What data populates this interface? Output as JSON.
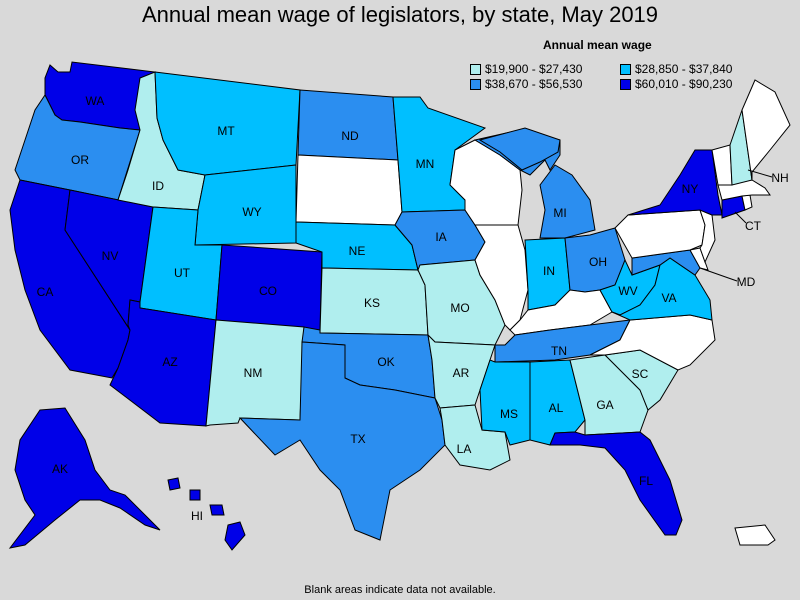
{
  "title": "Annual mean wage of legislators, by state, May 2019",
  "legend": {
    "title": "Annual mean wage",
    "items": [
      {
        "label": "$19,900 - $27,430",
        "color": "#b0eeee"
      },
      {
        "label": "$28,850 - $37,840",
        "color": "#00bfff"
      },
      {
        "label": "$38,670 - $56,530",
        "color": "#2b8ef0"
      },
      {
        "label": "$60,010 - $90,230",
        "color": "#0000e8"
      }
    ]
  },
  "footnote": "Blank areas indicate data not available.",
  "states": {
    "WA": {
      "label": "WA",
      "color": "#0000e8"
    },
    "OR": {
      "label": "OR",
      "color": "#2b8ef0"
    },
    "CA": {
      "label": "CA",
      "color": "#0000e8"
    },
    "NV": {
      "label": "NV",
      "color": "#0000e8"
    },
    "ID": {
      "label": "ID",
      "color": "#b0eeee"
    },
    "MT": {
      "label": "MT",
      "color": "#00bfff"
    },
    "WY": {
      "label": "WY",
      "color": "#00bfff"
    },
    "UT": {
      "label": "UT",
      "color": "#00bfff"
    },
    "AZ": {
      "label": "AZ",
      "color": "#0000e8"
    },
    "CO": {
      "label": "CO",
      "color": "#0000e8"
    },
    "NM": {
      "label": "NM",
      "color": "#b0eeee"
    },
    "ND": {
      "label": "ND",
      "color": "#2b8ef0"
    },
    "SD": {
      "label": "",
      "color": "#ffffff"
    },
    "NE": {
      "label": "NE",
      "color": "#00bfff"
    },
    "KS": {
      "label": "KS",
      "color": "#b0eeee"
    },
    "OK": {
      "label": "OK",
      "color": "#2b8ef0"
    },
    "TX": {
      "label": "TX",
      "color": "#2b8ef0"
    },
    "MN": {
      "label": "MN",
      "color": "#00bfff"
    },
    "IA": {
      "label": "IA",
      "color": "#2b8ef0"
    },
    "MO": {
      "label": "MO",
      "color": "#b0eeee"
    },
    "AR": {
      "label": "AR",
      "color": "#b0eeee"
    },
    "LA": {
      "label": "LA",
      "color": "#b0eeee"
    },
    "WI": {
      "label": "",
      "color": "#ffffff"
    },
    "IL": {
      "label": "",
      "color": "#ffffff"
    },
    "MI": {
      "label": "MI",
      "color": "#2b8ef0"
    },
    "IN": {
      "label": "IN",
      "color": "#00bfff"
    },
    "OH": {
      "label": "OH",
      "color": "#2b8ef0"
    },
    "KY": {
      "label": "",
      "color": "#ffffff"
    },
    "TN": {
      "label": "TN",
      "color": "#2b8ef0"
    },
    "MS": {
      "label": "MS",
      "color": "#00bfff"
    },
    "AL": {
      "label": "AL",
      "color": "#00bfff"
    },
    "GA": {
      "label": "GA",
      "color": "#b0eeee"
    },
    "FL": {
      "label": "FL",
      "color": "#0000e8"
    },
    "SC": {
      "label": "SC",
      "color": "#b0eeee"
    },
    "NC": {
      "label": "",
      "color": "#ffffff"
    },
    "VA": {
      "label": "VA",
      "color": "#00bfff"
    },
    "WV": {
      "label": "WV",
      "color": "#00bfff"
    },
    "MD": {
      "label": "MD",
      "color": "#2b8ef0"
    },
    "DE": {
      "label": "",
      "color": "#ffffff"
    },
    "PA": {
      "label": "",
      "color": "#ffffff"
    },
    "NJ": {
      "label": "",
      "color": "#ffffff"
    },
    "NY": {
      "label": "NY",
      "color": "#0000e8"
    },
    "CT": {
      "label": "CT",
      "color": "#0000e8"
    },
    "RI": {
      "label": "",
      "color": "#ffffff"
    },
    "MA": {
      "label": "",
      "color": "#ffffff"
    },
    "VT": {
      "label": "",
      "color": "#ffffff"
    },
    "NH": {
      "label": "NH",
      "color": "#b0eeee"
    },
    "ME": {
      "label": "",
      "color": "#ffffff"
    },
    "AK": {
      "label": "AK",
      "color": "#0000e8"
    },
    "HI": {
      "label": "HI",
      "color": "#0000e8"
    },
    "PR": {
      "label": "",
      "color": "#ffffff"
    }
  }
}
